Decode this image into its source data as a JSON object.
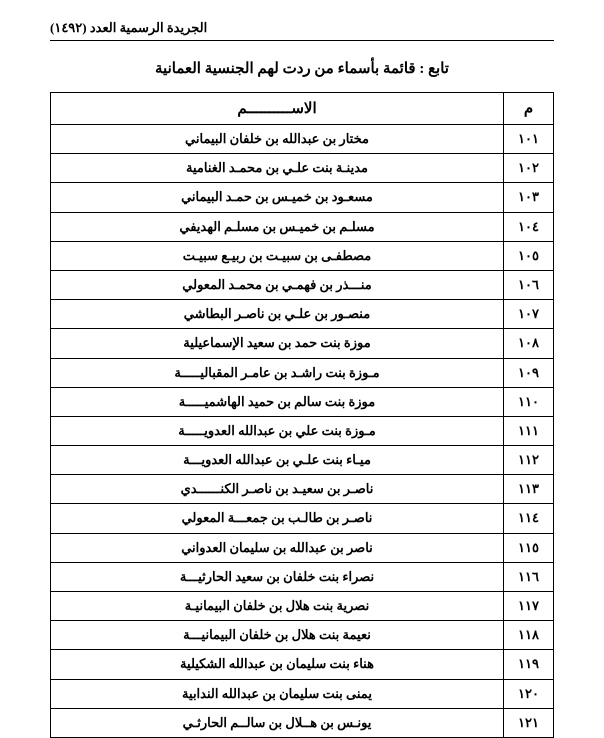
{
  "header": "الجريدة الرسمية العدد (١٤٩٢)",
  "title": "تابع : قائمة بأسماء من ردت لهم الجنسية العمانية",
  "columns": {
    "num": "م",
    "name": "الاســــــــــم"
  },
  "rows": [
    {
      "num": "١٠١",
      "name": "مختار بن عبدالله بن خلفان البيماني"
    },
    {
      "num": "١٠٢",
      "name": "مدينـة بنت علـي بن محمـد الغنامية"
    },
    {
      "num": "١٠٣",
      "name": "مسعـود بن خميـس بن حمـد البيماني"
    },
    {
      "num": "١٠٤",
      "name": "مسلـم بن خميـس بن مسلـم الهديفي"
    },
    {
      "num": "١٠٥",
      "name": "مصطفـى بن سبيـت بن ربيـع سبيـت"
    },
    {
      "num": "١٠٦",
      "name": "منـــذر بن فهمـي بن محمـد المعولي"
    },
    {
      "num": "١٠٧",
      "name": "منصـور بن علـي بن ناصـر البطاشي"
    },
    {
      "num": "١٠٨",
      "name": "موزة بنت حمد بن سعيد الإسماعيلية"
    },
    {
      "num": "١٠٩",
      "name": "مـوزة بنت راشـد بن عامـر المقباليـــــة"
    },
    {
      "num": "١١٠",
      "name": "موزة بنت سالم بن حميد الهاشميـــــة"
    },
    {
      "num": "١١١",
      "name": "مـوزة بنت علي بن عبدالله العدويـــــة"
    },
    {
      "num": "١١٢",
      "name": "ميـاء بنت علـي بن عبدالله العدويـــة"
    },
    {
      "num": "١١٣",
      "name": "ناصـر بن سعيـد بن ناصـر الكنــــــدي"
    },
    {
      "num": "١١٤",
      "name": "ناصـر بن طالـب بن جمعـــة المعولي"
    },
    {
      "num": "١١٥",
      "name": "ناصر بن عبدالله بن سليمان العدواني"
    },
    {
      "num": "١١٦",
      "name": "نصراء بنت خلفان بن سعيد الحارثيـــة"
    },
    {
      "num": "١١٧",
      "name": "نصرية بنت هلال بن خلفان البيمانيـة"
    },
    {
      "num": "١١٨",
      "name": "نعيمة بنت هلال بن خلفان البيمانيـــة"
    },
    {
      "num": "١١٩",
      "name": "هناء بنت سليمان بن عبدالله الشكيلية"
    },
    {
      "num": "١٢٠",
      "name": "يمنى بنت سليمان بن عبدالله الندابية"
    },
    {
      "num": "١٢١",
      "name": "يونـس بن هــلال بن سالــم الحارثـي"
    }
  ]
}
